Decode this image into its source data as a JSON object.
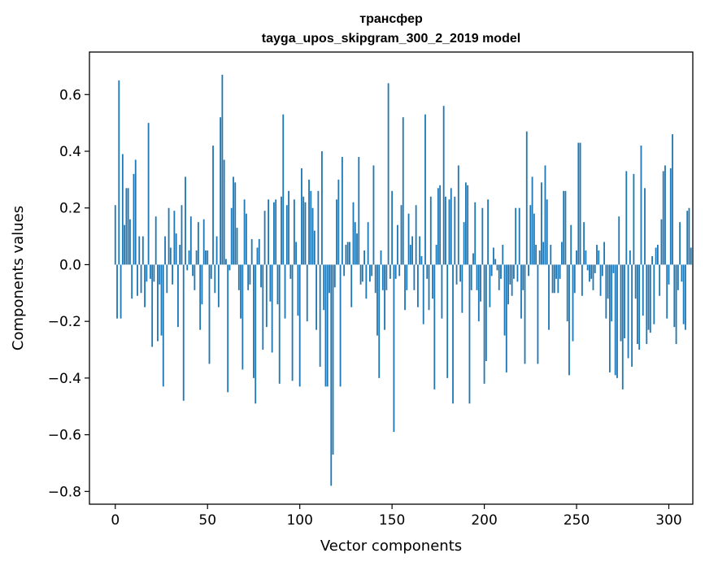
{
  "chart_data": {
    "type": "bar",
    "title": "трансфер",
    "subtitle": "tayga_upos_skipgram_300_2_2019 model",
    "xlabel": "Vector components",
    "ylabel": "Components values",
    "xlim": [
      -14,
      313
    ],
    "ylim": [
      -0.845,
      0.75
    ],
    "xticks": [
      0,
      50,
      100,
      150,
      200,
      250,
      300
    ],
    "yticks": [
      -0.8,
      -0.6,
      -0.4,
      -0.2,
      0.0,
      0.2,
      0.4,
      0.6
    ],
    "ytick_labels": [
      "−0.8",
      "−0.6",
      "−0.4",
      "−0.2",
      "0.0",
      "0.2",
      "0.4",
      "0.6"
    ],
    "bar_color": "#1f77b4",
    "values": [
      0.21,
      -0.19,
      0.65,
      -0.19,
      0.39,
      0.14,
      0.27,
      0.27,
      0.16,
      -0.12,
      0.32,
      0.37,
      -0.11,
      0.1,
      -0.1,
      0.1,
      -0.15,
      -0.06,
      0.5,
      -0.05,
      -0.29,
      -0.06,
      0.17,
      -0.27,
      -0.07,
      -0.25,
      -0.43,
      0.1,
      -0.1,
      0.2,
      0.06,
      -0.07,
      0.19,
      0.11,
      -0.22,
      0.07,
      0.21,
      -0.48,
      0.31,
      -0.02,
      0.05,
      0.17,
      -0.04,
      -0.09,
      0.05,
      0.15,
      -0.23,
      -0.14,
      0.16,
      0.05,
      0.05,
      -0.35,
      -0.05,
      0.42,
      -0.1,
      0.1,
      -0.15,
      0.52,
      0.67,
      0.37,
      0.02,
      -0.45,
      -0.02,
      0.2,
      0.31,
      0.29,
      0.13,
      -0.09,
      -0.19,
      -0.37,
      0.23,
      0.18,
      -0.09,
      -0.07,
      0.09,
      -0.4,
      -0.49,
      0.06,
      0.09,
      -0.08,
      -0.3,
      0.19,
      -0.22,
      0.23,
      -0.13,
      -0.31,
      0.22,
      0.23,
      -0.14,
      -0.42,
      0.24,
      0.53,
      -0.19,
      0.21,
      0.26,
      -0.05,
      -0.41,
      0.23,
      0.08,
      -0.18,
      -0.43,
      0.34,
      0.24,
      0.22,
      -0.2,
      0.3,
      0.26,
      0.2,
      0.12,
      -0.23,
      0.26,
      -0.36,
      0.4,
      -0.16,
      -0.43,
      -0.43,
      -0.1,
      -0.78,
      -0.67,
      -0.08,
      0.23,
      0.3,
      -0.43,
      0.38,
      -0.04,
      0.07,
      0.08,
      0.08,
      -0.15,
      0.22,
      0.15,
      0.11,
      0.38,
      -0.07,
      -0.06,
      0.05,
      -0.12,
      0.15,
      -0.06,
      -0.04,
      0.35,
      -0.1,
      -0.25,
      -0.4,
      0.05,
      -0.09,
      -0.23,
      -0.09,
      0.64,
      -0.05,
      0.26,
      -0.59,
      -0.05,
      0.14,
      -0.04,
      0.21,
      0.52,
      -0.16,
      -0.09,
      0.18,
      0.07,
      0.1,
      -0.09,
      0.21,
      -0.15,
      0.1,
      0.03,
      -0.21,
      0.53,
      -0.05,
      -0.16,
      0.24,
      -0.12,
      -0.44,
      0.07,
      0.27,
      0.28,
      -0.19,
      0.56,
      0.24,
      -0.4,
      0.23,
      0.27,
      -0.49,
      0.24,
      -0.07,
      0.35,
      -0.06,
      -0.17,
      0.15,
      0.29,
      0.28,
      -0.49,
      -0.09,
      0.04,
      0.22,
      -0.09,
      -0.2,
      -0.13,
      0.2,
      -0.42,
      -0.34,
      0.23,
      -0.15,
      -0.04,
      0.06,
      0.02,
      -0.02,
      -0.09,
      -0.05,
      0.07,
      -0.25,
      -0.38,
      -0.14,
      -0.07,
      -0.11,
      -0.05,
      0.2,
      -0.06,
      0.2,
      -0.19,
      -0.09,
      -0.35,
      0.47,
      -0.04,
      0.21,
      0.31,
      0.18,
      0.07,
      -0.35,
      0.05,
      0.29,
      0.08,
      0.35,
      0.23,
      -0.23,
      0.07,
      -0.1,
      -0.1,
      -0.05,
      -0.1,
      -0.05,
      0.08,
      0.26,
      0.26,
      -0.2,
      -0.39,
      0.14,
      -0.27,
      -0.1,
      0.05,
      0.43,
      0.43,
      -0.11,
      0.15,
      0.05,
      -0.02,
      -0.06,
      -0.05,
      -0.09,
      -0.03,
      0.07,
      0.05,
      -0.11,
      -0.04,
      0.08,
      -0.19,
      -0.12,
      -0.38,
      -0.2,
      -0.03,
      -0.39,
      -0.4,
      0.17,
      -0.27,
      -0.44,
      -0.26,
      0.33,
      -0.33,
      0.05,
      -0.36,
      0.32,
      -0.12,
      -0.28,
      -0.3,
      0.42,
      -0.18,
      0.27,
      -0.28,
      -0.23,
      -0.24,
      0.03,
      -0.21,
      0.06,
      0.07,
      -0.11,
      0.16,
      0.33,
      0.35,
      -0.19,
      -0.07,
      0.34,
      0.46,
      -0.22,
      -0.28,
      -0.09,
      0.15,
      -0.06,
      -0.21,
      -0.23,
      0.19,
      0.2,
      0.06
    ]
  }
}
